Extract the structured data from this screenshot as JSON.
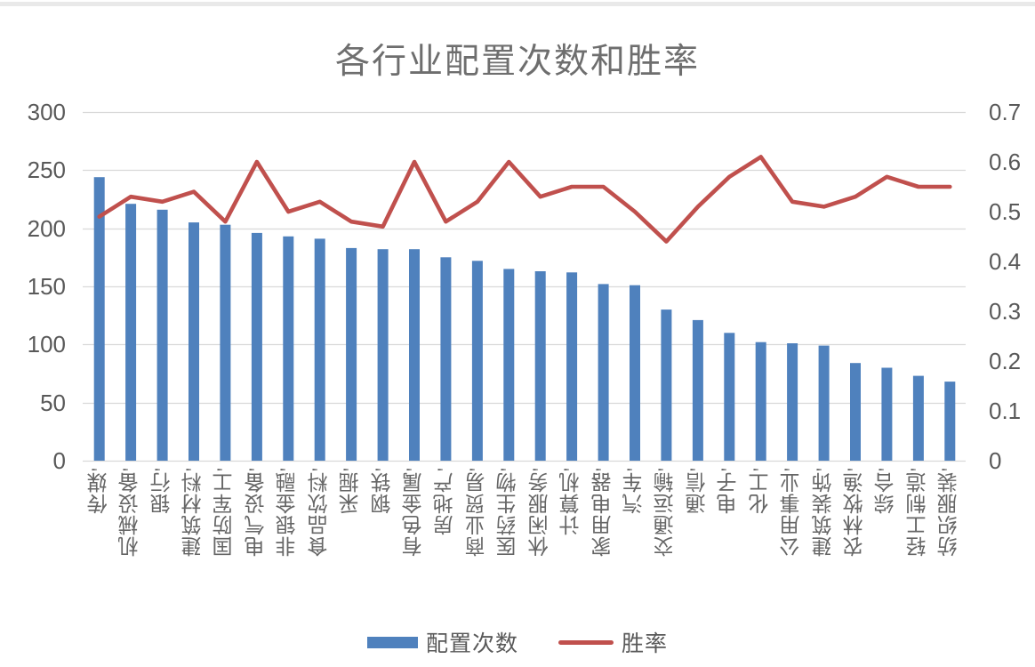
{
  "chart_data": {
    "type": "bar",
    "combo_with_line": true,
    "title": "各行业配置次数和胜率",
    "categories": [
      "传媒'",
      "机械设备'",
      "银行'",
      "建筑材料'",
      "国防军工'",
      "电气设备'",
      "非银金融'",
      "食品饮料'",
      "采掘'",
      "钢铁'",
      "有色金属'",
      "房地产'",
      "商业贸易'",
      "医药生物'",
      "休闲服务'",
      "计算机'",
      "家用电器'",
      "汽车'",
      "交通运输'",
      "通信'",
      "电子'",
      "化工'",
      "公用事业'",
      "建筑装饰'",
      "农林牧渔'",
      "综合'",
      "轻工制造'",
      "纺织服装'"
    ],
    "series": [
      {
        "name": "配置次数",
        "type": "bar",
        "axis": "left",
        "color": "#4F81BD",
        "values": [
          244,
          221,
          216,
          205,
          203,
          196,
          193,
          191,
          183,
          182,
          182,
          175,
          172,
          165,
          163,
          162,
          152,
          151,
          130,
          121,
          110,
          102,
          101,
          99,
          84,
          80,
          73,
          68
        ]
      },
      {
        "name": "胜率",
        "type": "line",
        "axis": "right",
        "color": "#C0504D",
        "values": [
          0.49,
          0.53,
          0.52,
          0.54,
          0.48,
          0.6,
          0.5,
          0.52,
          0.48,
          0.47,
          0.6,
          0.48,
          0.52,
          0.6,
          0.53,
          0.55,
          0.55,
          0.5,
          0.44,
          0.51,
          0.57,
          0.61,
          0.52,
          0.51,
          0.53,
          0.57,
          0.55,
          0.55
        ]
      }
    ],
    "left_axis": {
      "ticks": [
        300,
        250,
        200,
        150,
        100,
        50,
        0
      ],
      "range": [
        0,
        300
      ]
    },
    "right_axis": {
      "ticks": [
        0.7,
        0.6,
        0.5,
        0.4,
        0.3,
        0.2,
        0.1,
        0
      ],
      "range": [
        0,
        0.7
      ]
    },
    "grid": true,
    "gridline_color": "#d9d9d9",
    "axis_text_color": "#595959",
    "legend_position": "bottom"
  }
}
